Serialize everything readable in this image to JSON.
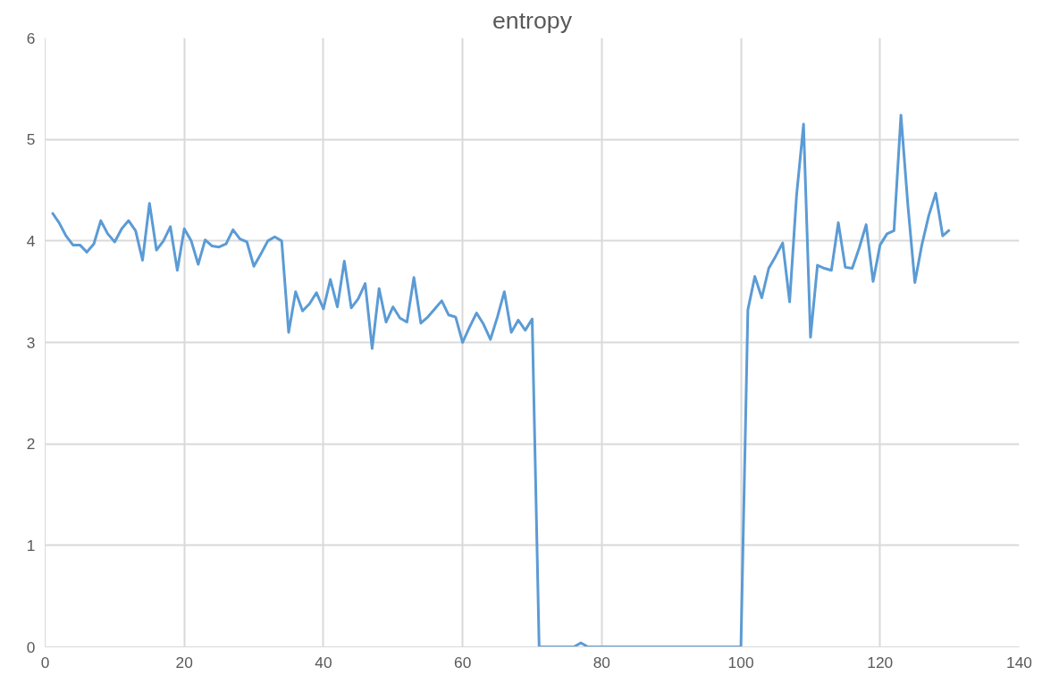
{
  "chart_data": {
    "type": "line",
    "title": "entropy",
    "x": [
      1,
      2,
      3,
      4,
      5,
      6,
      7,
      8,
      9,
      10,
      11,
      12,
      13,
      14,
      15,
      16,
      17,
      18,
      19,
      20,
      21,
      22,
      23,
      24,
      25,
      26,
      27,
      28,
      29,
      30,
      31,
      32,
      33,
      34,
      35,
      36,
      37,
      38,
      39,
      40,
      41,
      42,
      43,
      44,
      45,
      46,
      47,
      48,
      49,
      50,
      51,
      52,
      53,
      54,
      55,
      56,
      57,
      58,
      59,
      60,
      61,
      62,
      63,
      64,
      65,
      66,
      67,
      68,
      69,
      70,
      71,
      72,
      73,
      74,
      75,
      76,
      77,
      78,
      79,
      80,
      81,
      82,
      83,
      84,
      85,
      86,
      87,
      88,
      89,
      90,
      91,
      92,
      93,
      94,
      95,
      96,
      97,
      98,
      99,
      100,
      101,
      102,
      103,
      104,
      105,
      106,
      107,
      108,
      109,
      110,
      111,
      112,
      113,
      114,
      115,
      116,
      117,
      118,
      119,
      120,
      121,
      122,
      123,
      124,
      125,
      126,
      127,
      128,
      129,
      130
    ],
    "series": [
      {
        "color": "#5b9bd5",
        "values": [
          4.28,
          4.18,
          4.05,
          3.96,
          3.96,
          3.89,
          3.97,
          4.2,
          4.07,
          3.99,
          4.12,
          4.2,
          4.1,
          3.81,
          4.37,
          3.91,
          4.0,
          4.14,
          3.71,
          4.12,
          4.0,
          3.77,
          4.01,
          3.95,
          3.94,
          3.97,
          4.11,
          4.02,
          3.99,
          3.75,
          3.87,
          4.0,
          4.04,
          4.0,
          3.1,
          3.5,
          3.31,
          3.38,
          3.49,
          3.33,
          3.62,
          3.35,
          3.8,
          3.34,
          3.43,
          3.58,
          2.94,
          3.53,
          3.2,
          3.35,
          3.24,
          3.2,
          3.64,
          3.19,
          3.25,
          3.33,
          3.41,
          3.27,
          3.25,
          3.0,
          3.15,
          3.29,
          3.18,
          3.03,
          3.25,
          3.5,
          3.1,
          3.22,
          3.12,
          3.23,
          0,
          0,
          0,
          0,
          0,
          0,
          0.04,
          0,
          0,
          0,
          0,
          0,
          0,
          0,
          0,
          0,
          0,
          0,
          0,
          0,
          0,
          0,
          0,
          0,
          0,
          0,
          0,
          0,
          0,
          0,
          3.32,
          3.65,
          3.44,
          3.73,
          3.85,
          3.98,
          3.4,
          4.45,
          5.15,
          3.05,
          3.76,
          3.73,
          3.71,
          4.18,
          3.74,
          3.73,
          3.93,
          4.16,
          3.6,
          3.96,
          4.07,
          4.1,
          5.24,
          4.35,
          3.59,
          3.96,
          4.25,
          4.47,
          4.05,
          4.11
        ]
      }
    ],
    "xlim": [
      0,
      140
    ],
    "xticks": [
      0,
      20,
      40,
      60,
      80,
      100,
      120,
      140
    ],
    "ylim": [
      0,
      6
    ],
    "yticks": [
      0,
      1,
      2,
      3,
      4,
      5,
      6
    ],
    "grid": true
  }
}
